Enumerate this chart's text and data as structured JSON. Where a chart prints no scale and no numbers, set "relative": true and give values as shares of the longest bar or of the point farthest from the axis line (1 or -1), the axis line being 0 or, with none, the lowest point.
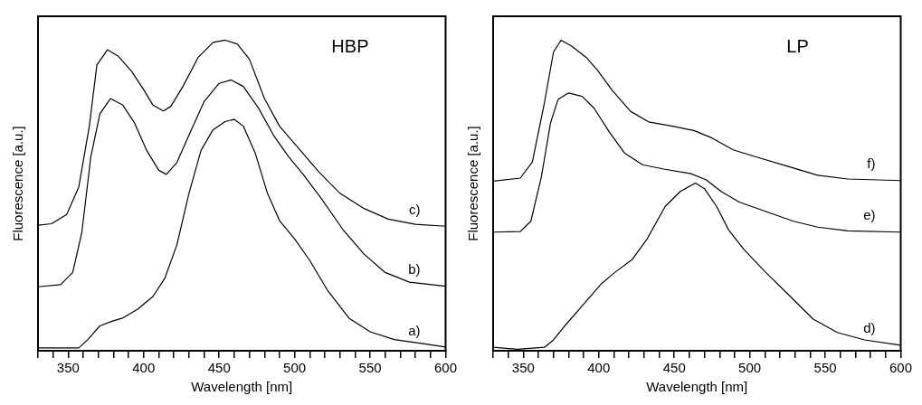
{
  "chart_data": [
    {
      "type": "line",
      "relative": true,
      "xlabel": "Wavelength [nm]",
      "ylabel": "Fluorescence [a.u.]",
      "annotations": [
        "HBP"
      ],
      "xlim": [
        330,
        600
      ],
      "xticks": [
        {
          "value": 330,
          "label": null
        },
        {
          "value": 340,
          "label": null
        },
        350,
        {
          "value": 360,
          "label": null
        },
        {
          "value": 370,
          "label": null
        },
        {
          "value": 380,
          "label": null
        },
        {
          "value": 390,
          "label": null
        },
        400,
        {
          "value": 410,
          "label": null
        },
        {
          "value": 420,
          "label": null
        },
        {
          "value": 430,
          "label": null
        },
        {
          "value": 440,
          "label": null
        },
        450,
        {
          "value": 460,
          "label": null
        },
        {
          "value": 470,
          "label": null
        },
        {
          "value": 480,
          "label": null
        },
        {
          "value": 490,
          "label": null
        },
        500,
        {
          "value": 510,
          "label": null
        },
        {
          "value": 520,
          "label": null
        },
        {
          "value": 530,
          "label": null
        },
        {
          "value": 540,
          "label": null
        },
        550,
        {
          "value": 560,
          "label": null
        },
        {
          "value": 570,
          "label": null
        },
        {
          "value": 580,
          "label": null
        },
        {
          "value": 590,
          "label": null
        },
        600
      ],
      "grid": false,
      "legend": false,
      "marker": "none",
      "line_style": "solid",
      "series": [
        {
          "name": "a)",
          "color": "#000000",
          "x": [
            330,
            357,
            363,
            371,
            379,
            386,
            396,
            406,
            414,
            422,
            430,
            438,
            446,
            454,
            460,
            466,
            474,
            482,
            490,
            500,
            510,
            522,
            536,
            550,
            566,
            586,
            600
          ],
          "values": [
            0.009,
            0.009,
            0.036,
            0.08,
            0.095,
            0.105,
            0.134,
            0.174,
            0.233,
            0.341,
            0.507,
            0.645,
            0.712,
            0.738,
            0.745,
            0.723,
            0.635,
            0.507,
            0.419,
            0.36,
            0.291,
            0.193,
            0.105,
            0.061,
            0.036,
            0.022,
            0.012
          ]
        },
        {
          "name": "b)",
          "color": "#000000",
          "x": [
            330,
            345,
            353,
            359,
            365,
            371,
            378,
            386,
            394,
            402,
            410,
            415,
            422,
            430,
            440,
            450,
            458,
            466,
            476,
            486,
            496,
            506,
            518,
            532,
            546,
            560,
            576,
            600
          ],
          "values": [
            0.206,
            0.213,
            0.252,
            0.38,
            0.625,
            0.763,
            0.812,
            0.792,
            0.733,
            0.645,
            0.581,
            0.568,
            0.606,
            0.694,
            0.802,
            0.861,
            0.872,
            0.851,
            0.782,
            0.694,
            0.625,
            0.566,
            0.488,
            0.39,
            0.311,
            0.252,
            0.221,
            0.208
          ]
        },
        {
          "name": "c)",
          "color": "#000000",
          "x": [
            330,
            339,
            349,
            357,
            364,
            369,
            376,
            383,
            392,
            400,
            406,
            413,
            418,
            426,
            436,
            446,
            454,
            462,
            470,
            480,
            490,
            502,
            516,
            530,
            546,
            562,
            580,
            600
          ],
          "values": [
            0.404,
            0.409,
            0.439,
            0.527,
            0.723,
            0.92,
            0.969,
            0.949,
            0.9,
            0.841,
            0.792,
            0.772,
            0.787,
            0.851,
            0.944,
            0.993,
            1,
            0.988,
            0.939,
            0.812,
            0.723,
            0.655,
            0.576,
            0.507,
            0.458,
            0.424,
            0.407,
            0.401
          ]
        }
      ]
    },
    {
      "type": "line",
      "relative": true,
      "xlabel": "Wavelength [nm]",
      "ylabel": "Fluorescence [a.u.]",
      "annotations": [
        "LP"
      ],
      "xlim": [
        330,
        600
      ],
      "xticks": [
        {
          "value": 330,
          "label": null
        },
        {
          "value": 340,
          "label": null
        },
        350,
        {
          "value": 360,
          "label": null
        },
        {
          "value": 370,
          "label": null
        },
        {
          "value": 380,
          "label": null
        },
        {
          "value": 390,
          "label": null
        },
        400,
        {
          "value": 410,
          "label": null
        },
        {
          "value": 420,
          "label": null
        },
        {
          "value": 430,
          "label": null
        },
        {
          "value": 440,
          "label": null
        },
        450,
        {
          "value": 460,
          "label": null
        },
        {
          "value": 470,
          "label": null
        },
        {
          "value": 480,
          "label": null
        },
        {
          "value": 490,
          "label": null
        },
        500,
        {
          "value": 510,
          "label": null
        },
        {
          "value": 520,
          "label": null
        },
        {
          "value": 530,
          "label": null
        },
        {
          "value": 540,
          "label": null
        },
        550,
        {
          "value": 560,
          "label": null
        },
        {
          "value": 570,
          "label": null
        },
        {
          "value": 580,
          "label": null
        },
        {
          "value": 590,
          "label": null
        },
        600
      ],
      "grid": false,
      "legend": false,
      "marker": "none",
      "line_style": "solid",
      "series": [
        {
          "name": "d)",
          "color": "#000000",
          "x": [
            330,
            346,
            364,
            370,
            378,
            390,
            402,
            410,
            422,
            432,
            444,
            454,
            464,
            470,
            478,
            486,
            496,
            510,
            526,
            542,
            558,
            576,
            600
          ],
          "values": [
            0.011,
            0.005,
            0.011,
            0.035,
            0.083,
            0.15,
            0.217,
            0.25,
            0.293,
            0.36,
            0.465,
            0.513,
            0.54,
            0.522,
            0.465,
            0.389,
            0.327,
            0.255,
            0.179,
            0.102,
            0.059,
            0.035,
            0.018
          ]
        },
        {
          "name": "e)",
          "color": "#000000",
          "x": [
            330,
            348,
            355,
            362,
            368,
            373,
            380,
            389,
            397,
            407,
            417,
            429,
            443,
            461,
            471,
            481,
            493,
            509,
            529,
            545,
            565,
            600
          ],
          "values": [
            0.382,
            0.384,
            0.417,
            0.561,
            0.733,
            0.809,
            0.83,
            0.819,
            0.78,
            0.704,
            0.637,
            0.599,
            0.585,
            0.57,
            0.551,
            0.513,
            0.479,
            0.451,
            0.417,
            0.398,
            0.386,
            0.382
          ]
        },
        {
          "name": "f)",
          "color": "#000000",
          "x": [
            330,
            348,
            356,
            364,
            370,
            375,
            382,
            392,
            399,
            409,
            421,
            433,
            449,
            463,
            475,
            489,
            505,
            525,
            545,
            565,
            600
          ],
          "values": [
            0.546,
            0.556,
            0.608,
            0.799,
            0.962,
            1,
            0.981,
            0.943,
            0.904,
            0.838,
            0.771,
            0.737,
            0.723,
            0.709,
            0.685,
            0.647,
            0.623,
            0.594,
            0.565,
            0.553,
            0.548
          ]
        }
      ]
    }
  ]
}
